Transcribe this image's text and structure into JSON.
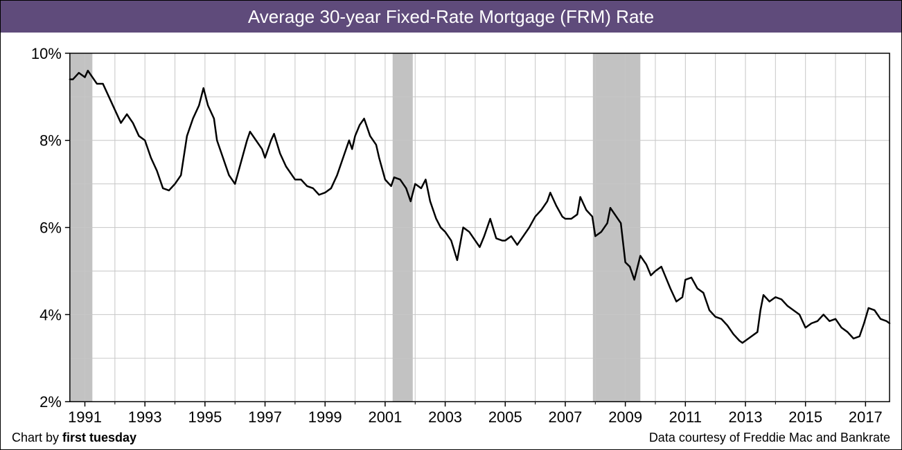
{
  "title": "Average 30-year Fixed-Rate Mortgage (FRM) Rate",
  "title_bg": "#5f4b7b",
  "title_color": "#ffffff",
  "title_fontsize": 26,
  "plot": {
    "type": "line",
    "background_color": "#ffffff",
    "grid_color": "#c6c6c6",
    "axis_color": "#000000",
    "line_color": "#000000",
    "line_width": 2.5,
    "recession_fill": "#c2c2c2",
    "recession_bands": [
      {
        "start": 1990.5,
        "end": 1991.25
      },
      {
        "start": 2001.25,
        "end": 2001.92
      },
      {
        "start": 2007.92,
        "end": 2009.5
      }
    ],
    "xlim": [
      1990.5,
      2017.8
    ],
    "ylim": [
      2,
      10
    ],
    "xtick_start": 1991,
    "xtick_step": 2,
    "xtick_end": 2017,
    "ytick_start": 2,
    "ytick_step": 2,
    "ytick_end": 10,
    "ytick_format": "pct",
    "tick_label_fontsize": 22,
    "tick_label_color": "#000000",
    "minor_x_every": 1,
    "minor_y_every": 1,
    "series": {
      "values": [
        [
          1990.5,
          9.4
        ],
        [
          1990.6,
          9.4
        ],
        [
          1990.8,
          9.55
        ],
        [
          1991.0,
          9.45
        ],
        [
          1991.1,
          9.6
        ],
        [
          1991.2,
          9.5
        ],
        [
          1991.4,
          9.3
        ],
        [
          1991.6,
          9.3
        ],
        [
          1991.8,
          9.0
        ],
        [
          1992.0,
          8.7
        ],
        [
          1992.2,
          8.4
        ],
        [
          1992.4,
          8.6
        ],
        [
          1992.6,
          8.4
        ],
        [
          1992.8,
          8.1
        ],
        [
          1993.0,
          8.0
        ],
        [
          1993.2,
          7.6
        ],
        [
          1993.4,
          7.3
        ],
        [
          1993.5,
          7.1
        ],
        [
          1993.6,
          6.9
        ],
        [
          1993.8,
          6.85
        ],
        [
          1994.0,
          7.0
        ],
        [
          1994.2,
          7.2
        ],
        [
          1994.4,
          8.1
        ],
        [
          1994.6,
          8.5
        ],
        [
          1994.8,
          8.8
        ],
        [
          1994.95,
          9.2
        ],
        [
          1995.1,
          8.8
        ],
        [
          1995.3,
          8.5
        ],
        [
          1995.4,
          8.0
        ],
        [
          1995.6,
          7.6
        ],
        [
          1995.7,
          7.4
        ],
        [
          1995.8,
          7.2
        ],
        [
          1996.0,
          7.0
        ],
        [
          1996.2,
          7.5
        ],
        [
          1996.4,
          8.0
        ],
        [
          1996.5,
          8.2
        ],
        [
          1996.7,
          8.0
        ],
        [
          1996.9,
          7.8
        ],
        [
          1997.0,
          7.6
        ],
        [
          1997.2,
          8.0
        ],
        [
          1997.3,
          8.15
        ],
        [
          1997.5,
          7.7
        ],
        [
          1997.7,
          7.4
        ],
        [
          1997.9,
          7.2
        ],
        [
          1998.0,
          7.1
        ],
        [
          1998.2,
          7.1
        ],
        [
          1998.4,
          6.95
        ],
        [
          1998.6,
          6.9
        ],
        [
          1998.8,
          6.75
        ],
        [
          1999.0,
          6.8
        ],
        [
          1999.2,
          6.9
        ],
        [
          1999.4,
          7.2
        ],
        [
          1999.6,
          7.6
        ],
        [
          1999.8,
          8.0
        ],
        [
          1999.9,
          7.8
        ],
        [
          2000.0,
          8.1
        ],
        [
          2000.15,
          8.35
        ],
        [
          2000.3,
          8.5
        ],
        [
          2000.5,
          8.1
        ],
        [
          2000.7,
          7.9
        ],
        [
          2000.8,
          7.6
        ],
        [
          2001.0,
          7.1
        ],
        [
          2001.2,
          6.95
        ],
        [
          2001.3,
          7.15
        ],
        [
          2001.5,
          7.1
        ],
        [
          2001.7,
          6.9
        ],
        [
          2001.85,
          6.6
        ],
        [
          2002.0,
          7.0
        ],
        [
          2002.2,
          6.9
        ],
        [
          2002.35,
          7.1
        ],
        [
          2002.5,
          6.6
        ],
        [
          2002.7,
          6.2
        ],
        [
          2002.85,
          6.0
        ],
        [
          2003.0,
          5.9
        ],
        [
          2003.2,
          5.7
        ],
        [
          2003.4,
          5.25
        ],
        [
          2003.6,
          6.0
        ],
        [
          2003.8,
          5.9
        ],
        [
          2004.0,
          5.7
        ],
        [
          2004.15,
          5.55
        ],
        [
          2004.3,
          5.8
        ],
        [
          2004.5,
          6.2
        ],
        [
          2004.7,
          5.75
        ],
        [
          2004.9,
          5.7
        ],
        [
          2005.0,
          5.7
        ],
        [
          2005.2,
          5.8
        ],
        [
          2005.4,
          5.6
        ],
        [
          2005.6,
          5.8
        ],
        [
          2005.8,
          6.0
        ],
        [
          2006.0,
          6.25
        ],
        [
          2006.2,
          6.4
        ],
        [
          2006.4,
          6.6
        ],
        [
          2006.5,
          6.8
        ],
        [
          2006.7,
          6.5
        ],
        [
          2006.9,
          6.25
        ],
        [
          2007.0,
          6.2
        ],
        [
          2007.2,
          6.2
        ],
        [
          2007.4,
          6.3
        ],
        [
          2007.5,
          6.7
        ],
        [
          2007.7,
          6.4
        ],
        [
          2007.9,
          6.25
        ],
        [
          2008.0,
          5.8
        ],
        [
          2008.2,
          5.9
        ],
        [
          2008.4,
          6.1
        ],
        [
          2008.5,
          6.45
        ],
        [
          2008.7,
          6.25
        ],
        [
          2008.85,
          6.1
        ],
        [
          2009.0,
          5.2
        ],
        [
          2009.15,
          5.1
        ],
        [
          2009.3,
          4.8
        ],
        [
          2009.5,
          5.35
        ],
        [
          2009.7,
          5.15
        ],
        [
          2009.85,
          4.9
        ],
        [
          2010.0,
          5.0
        ],
        [
          2010.2,
          5.1
        ],
        [
          2010.35,
          4.85
        ],
        [
          2010.5,
          4.6
        ],
        [
          2010.7,
          4.3
        ],
        [
          2010.9,
          4.4
        ],
        [
          2011.0,
          4.8
        ],
        [
          2011.2,
          4.85
        ],
        [
          2011.4,
          4.6
        ],
        [
          2011.6,
          4.5
        ],
        [
          2011.8,
          4.1
        ],
        [
          2012.0,
          3.95
        ],
        [
          2012.2,
          3.9
        ],
        [
          2012.4,
          3.75
        ],
        [
          2012.6,
          3.55
        ],
        [
          2012.8,
          3.4
        ],
        [
          2012.9,
          3.35
        ],
        [
          2013.0,
          3.4
        ],
        [
          2013.2,
          3.5
        ],
        [
          2013.4,
          3.6
        ],
        [
          2013.5,
          4.1
        ],
        [
          2013.6,
          4.45
        ],
        [
          2013.8,
          4.3
        ],
        [
          2014.0,
          4.4
        ],
        [
          2014.2,
          4.35
        ],
        [
          2014.4,
          4.2
        ],
        [
          2014.6,
          4.1
        ],
        [
          2014.8,
          4.0
        ],
        [
          2015.0,
          3.7
        ],
        [
          2015.2,
          3.8
        ],
        [
          2015.4,
          3.85
        ],
        [
          2015.6,
          4.0
        ],
        [
          2015.8,
          3.85
        ],
        [
          2016.0,
          3.9
        ],
        [
          2016.2,
          3.7
        ],
        [
          2016.4,
          3.6
        ],
        [
          2016.6,
          3.45
        ],
        [
          2016.8,
          3.5
        ],
        [
          2016.95,
          3.8
        ],
        [
          2017.1,
          4.15
        ],
        [
          2017.3,
          4.1
        ],
        [
          2017.5,
          3.9
        ],
        [
          2017.7,
          3.85
        ],
        [
          2017.8,
          3.8
        ]
      ]
    }
  },
  "credit_left_prefix": "Chart by ",
  "credit_left_bold": "first tuesday",
  "credit_right": "Data courtesy of Freddie Mac and Bankrate",
  "credit_fontsize": 18
}
